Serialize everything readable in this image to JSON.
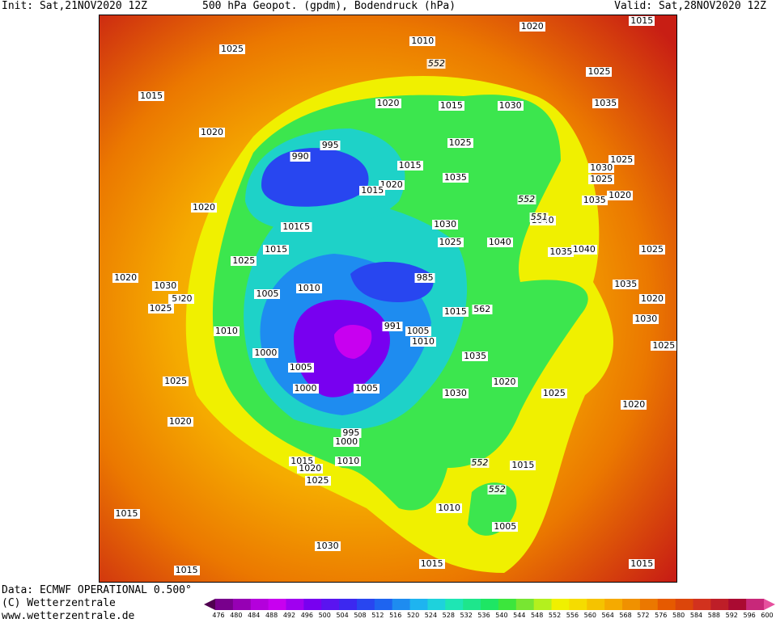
{
  "header": {
    "init": "Init: Sat,21NOV2020 12Z",
    "title": "500 hPa Geopot. (gpdm), Bodendruck (hPa)",
    "valid": "Valid: Sat,28NOV2020 12Z"
  },
  "footer": {
    "data_source": "Data: ECMWF OPERATIONAL 0.500°",
    "copyright": "(C) Wetterzentrale",
    "url": "www.wetterzentrale.de"
  },
  "scale": {
    "ticks": [
      "476",
      "480",
      "484",
      "488",
      "492",
      "496",
      "500",
      "504",
      "508",
      "512",
      "516",
      "520",
      "524",
      "528",
      "532",
      "536",
      "540",
      "544",
      "548",
      "552",
      "556",
      "560",
      "564",
      "568",
      "572",
      "576",
      "580",
      "584",
      "588",
      "592",
      "596",
      "600"
    ],
    "colors": [
      "#500050",
      "#78008c",
      "#9600b4",
      "#b400dc",
      "#c800f0",
      "#a000f0",
      "#7800f0",
      "#5a14f0",
      "#3c28f0",
      "#2846f0",
      "#1e64f0",
      "#1e8cf0",
      "#1eb4f0",
      "#1ed2dc",
      "#1ee6b4",
      "#1ee68c",
      "#1ee664",
      "#3ce63c",
      "#78e632",
      "#b4f01e",
      "#f0f000",
      "#f5dc00",
      "#f5c300",
      "#f5aa00",
      "#f09100",
      "#eb7800",
      "#e65a00",
      "#dc460a",
      "#d2321e",
      "#be1e28",
      "#aa0a32",
      "#c8287a",
      "#e6509e"
    ]
  },
  "map": {
    "pressure_labels": [
      {
        "text": "1025",
        "fx": 0.23,
        "fy": 0.06
      },
      {
        "text": "1010",
        "fx": 0.56,
        "fy": 0.045
      },
      {
        "text": "1020",
        "fx": 0.75,
        "fy": 0.02
      },
      {
        "text": "1015",
        "fx": 0.09,
        "fy": 0.143
      },
      {
        "text": "1020",
        "fx": 0.5,
        "fy": 0.155
      },
      {
        "text": "1015",
        "fx": 0.61,
        "fy": 0.16
      },
      {
        "text": "1030",
        "fx": 0.712,
        "fy": 0.16
      },
      {
        "text": "1025",
        "fx": 0.866,
        "fy": 0.1
      },
      {
        "text": "1035",
        "fx": 0.877,
        "fy": 0.155
      },
      {
        "text": "1020",
        "fx": 0.195,
        "fy": 0.207
      },
      {
        "text": "995",
        "fx": 0.4,
        "fy": 0.23
      },
      {
        "text": "990",
        "fx": 0.348,
        "fy": 0.25
      },
      {
        "text": "1025",
        "fx": 0.625,
        "fy": 0.226
      },
      {
        "text": "1015",
        "fx": 0.538,
        "fy": 0.265
      },
      {
        "text": "1020",
        "fx": 0.506,
        "fy": 0.3
      },
      {
        "text": "1015",
        "fx": 0.473,
        "fy": 0.31
      },
      {
        "text": "1035",
        "fx": 0.617,
        "fy": 0.287
      },
      {
        "text": "1025",
        "fx": 0.905,
        "fy": 0.256
      },
      {
        "text": "1030",
        "fx": 0.87,
        "fy": 0.27
      },
      {
        "text": "1025",
        "fx": 0.87,
        "fy": 0.29
      },
      {
        "text": "1020",
        "fx": 0.902,
        "fy": 0.318
      },
      {
        "text": "1035",
        "fx": 0.858,
        "fy": 0.327
      },
      {
        "text": "1020",
        "fx": 0.181,
        "fy": 0.34
      },
      {
        "text": "1010",
        "fx": 0.337,
        "fy": 0.374
      },
      {
        "text": "5",
        "fx": 0.36,
        "fy": 0.374
      },
      {
        "text": "1030",
        "fx": 0.599,
        "fy": 0.37
      },
      {
        "text": "1040",
        "fx": 0.768,
        "fy": 0.362
      },
      {
        "text": "1025",
        "fx": 0.608,
        "fy": 0.401
      },
      {
        "text": "1040",
        "fx": 0.694,
        "fy": 0.401
      },
      {
        "text": "1040",
        "fx": 0.84,
        "fy": 0.413
      },
      {
        "text": "1035",
        "fx": 0.8,
        "fy": 0.418
      },
      {
        "text": "1015",
        "fx": 0.306,
        "fy": 0.413
      },
      {
        "text": "1025",
        "fx": 0.25,
        "fy": 0.433
      },
      {
        "text": "1025",
        "fx": 0.958,
        "fy": 0.413
      },
      {
        "text": "1020",
        "fx": 0.045,
        "fy": 0.464
      },
      {
        "text": "1030",
        "fx": 0.114,
        "fy": 0.478
      },
      {
        "text": "1020",
        "fx": 0.141,
        "fy": 0.5
      },
      {
        "text": "1025",
        "fx": 0.106,
        "fy": 0.518
      },
      {
        "text": "5",
        "fx": 0.13,
        "fy": 0.5
      },
      {
        "text": "1010",
        "fx": 0.363,
        "fy": 0.482
      },
      {
        "text": "1005",
        "fx": 0.291,
        "fy": 0.492
      },
      {
        "text": "985",
        "fx": 0.564,
        "fy": 0.464
      },
      {
        "text": "1015",
        "fx": 0.617,
        "fy": 0.523
      },
      {
        "text": "562",
        "fx": 0.663,
        "fy": 0.519
      },
      {
        "text": "1035",
        "fx": 0.912,
        "fy": 0.475
      },
      {
        "text": "1020",
        "fx": 0.958,
        "fy": 0.501
      },
      {
        "text": "1030",
        "fx": 0.947,
        "fy": 0.536
      },
      {
        "text": "1010",
        "fx": 0.22,
        "fy": 0.558
      },
      {
        "text": "991",
        "fx": 0.508,
        "fy": 0.549
      },
      {
        "text": "1005",
        "fx": 0.552,
        "fy": 0.558
      },
      {
        "text": "1010",
        "fx": 0.561,
        "fy": 0.576
      },
      {
        "text": "1000",
        "fx": 0.288,
        "fy": 0.596
      },
      {
        "text": "1025",
        "fx": 0.978,
        "fy": 0.583
      },
      {
        "text": "1035",
        "fx": 0.651,
        "fy": 0.602
      },
      {
        "text": "1005",
        "fx": 0.349,
        "fy": 0.622
      },
      {
        "text": "1020",
        "fx": 0.702,
        "fy": 0.647
      },
      {
        "text": "1025",
        "fx": 0.132,
        "fy": 0.646
      },
      {
        "text": "1000",
        "fx": 0.357,
        "fy": 0.659
      },
      {
        "text": "1005",
        "fx": 0.463,
        "fy": 0.659
      },
      {
        "text": "1030",
        "fx": 0.617,
        "fy": 0.667
      },
      {
        "text": "1025",
        "fx": 0.788,
        "fy": 0.667
      },
      {
        "text": "1020",
        "fx": 0.926,
        "fy": 0.688
      },
      {
        "text": "1020",
        "fx": 0.14,
        "fy": 0.718
      },
      {
        "text": "995",
        "fx": 0.436,
        "fy": 0.737
      },
      {
        "text": "1000",
        "fx": 0.428,
        "fy": 0.753
      },
      {
        "text": "1015",
        "fx": 0.351,
        "fy": 0.787
      },
      {
        "text": "1010",
        "fx": 0.431,
        "fy": 0.787
      },
      {
        "text": "1020",
        "fx": 0.365,
        "fy": 0.8
      },
      {
        "text": "1015",
        "fx": 0.734,
        "fy": 0.794
      },
      {
        "text": "1025",
        "fx": 0.378,
        "fy": 0.821
      },
      {
        "text": "1010",
        "fx": 0.606,
        "fy": 0.87
      },
      {
        "text": "1015",
        "fx": 0.047,
        "fy": 0.88
      },
      {
        "text": "1005",
        "fx": 0.703,
        "fy": 0.903
      },
      {
        "text": "1030",
        "fx": 0.395,
        "fy": 0.937
      },
      {
        "text": "1015",
        "fx": 0.151,
        "fy": 0.98
      },
      {
        "text": "1015",
        "fx": 0.576,
        "fy": 0.969
      },
      {
        "text": "1015",
        "fx": 0.94,
        "fy": 0.969
      },
      {
        "text": "1015",
        "fx": 0.94,
        "fy": 0.0
      }
    ],
    "geopotential_labels": [
      {
        "text": "552",
        "fx": 0.584,
        "fy": 0.086
      },
      {
        "text": "552",
        "fx": 0.74,
        "fy": 0.325
      },
      {
        "text": "551",
        "fx": 0.762,
        "fy": 0.357
      },
      {
        "text": "552",
        "fx": 0.659,
        "fy": 0.79
      },
      {
        "text": "552",
        "fx": 0.689,
        "fy": 0.837
      }
    ]
  }
}
